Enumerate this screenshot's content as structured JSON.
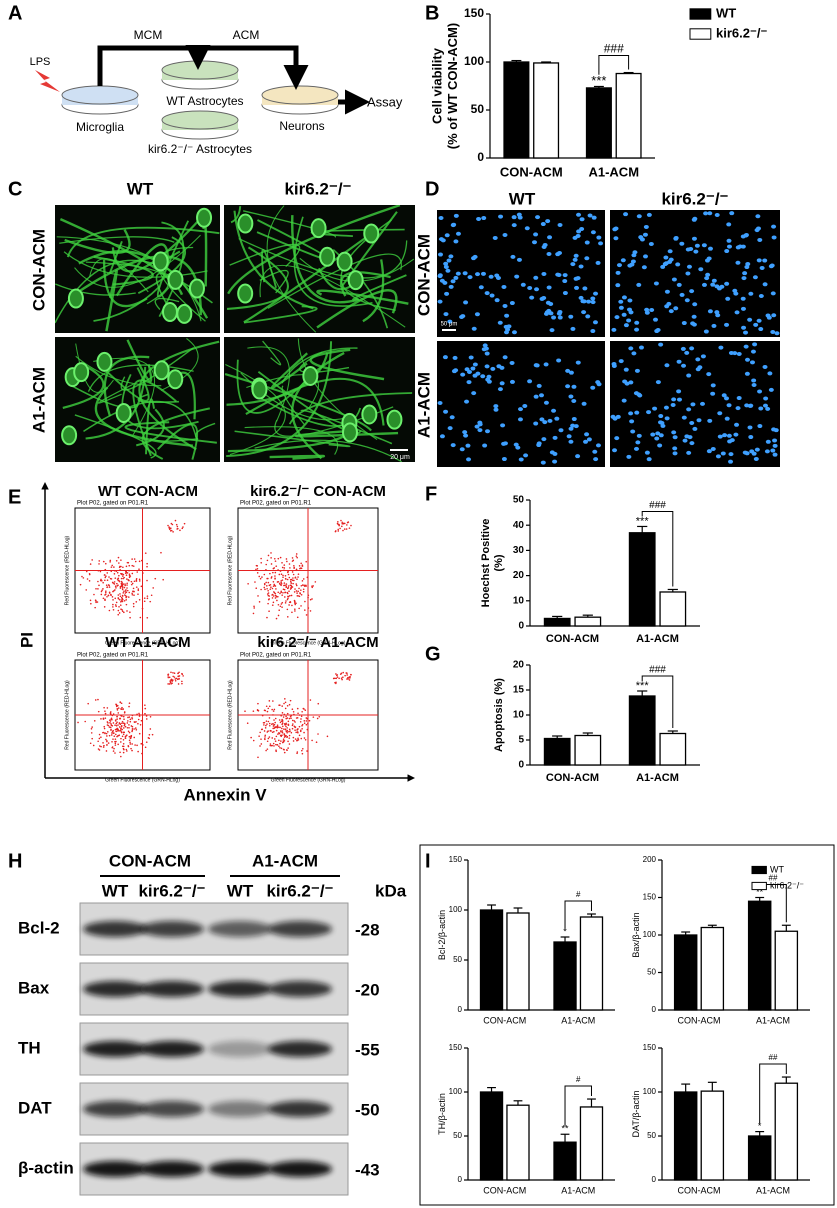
{
  "panels": {
    "letters": [
      "A",
      "B",
      "C",
      "D",
      "E",
      "F",
      "G",
      "H",
      "I"
    ],
    "a": {
      "lps": "LPS",
      "mcm": "MCM",
      "acm": "ACM",
      "microglia": "Microglia",
      "wt_astro": "WT Astrocytes",
      "kir_astro": "kir6.2⁻/⁻ Astrocytes",
      "neurons": "Neurons",
      "assay": "Assay"
    },
    "c": {
      "cols": [
        "WT",
        "kir6.2⁻/⁻"
      ],
      "rows": [
        "CON-ACM",
        "A1-ACM"
      ],
      "scale": "20 μm"
    },
    "d": {
      "cols": [
        "WT",
        "kir6.2⁻/⁻"
      ],
      "rows": [
        "CON-ACM",
        "A1-ACM"
      ],
      "scale": "50 μm"
    },
    "e": {
      "titles": [
        "WT CON-ACM",
        "kir6.2⁻/⁻ CON-ACM",
        "WT A1-ACM",
        "kir6.2⁻/⁻ A1-ACM"
      ],
      "plot_caption": "Plot P02, gated on P01.R1",
      "y_inner": "Red Fluorescence (RED-HLog)",
      "x_inner": "Green Fluorescence (GRN-HLog)",
      "y_axis": "PI",
      "x_axis": "Annexin V"
    },
    "h": {
      "groups": [
        "CON-ACM",
        "A1-ACM"
      ],
      "lanes": [
        "WT",
        "kir6.2⁻/⁻",
        "WT",
        "kir6.2⁻/⁻"
      ],
      "unit": "kDa",
      "proteins": [
        "Bcl-2",
        "Bax",
        "TH",
        "DAT",
        "β-actin"
      ],
      "sizes": [
        "-28",
        "-20",
        "-55",
        "-50",
        "-43"
      ]
    }
  },
  "chart_data": [
    {
      "type": "bar",
      "ylabel": [
        "Cell viability",
        "(% of WT CON-ACM)"
      ],
      "categories": [
        "CON-ACM",
        "A1-ACM"
      ],
      "series": [
        {
          "name": "WT",
          "color": "#000000",
          "values": [
            100,
            73
          ],
          "errors": [
            1.5,
            1.5
          ]
        },
        {
          "name": "kir6.2⁻/⁻",
          "color": "#ffffff",
          "values": [
            99,
            88
          ],
          "errors": [
            1,
            1
          ]
        }
      ],
      "ylim": [
        0,
        150
      ],
      "yticks": [
        0,
        50,
        100,
        150
      ],
      "legend": true,
      "star_label": "***",
      "hash_label": "###"
    },
    {
      "type": "bar",
      "ylabel": [
        "Hoechst Positive",
        "(%)"
      ],
      "categories": [
        "CON-ACM",
        "A1-ACM"
      ],
      "series": [
        {
          "name": "WT",
          "color": "#000000",
          "values": [
            3,
            37
          ],
          "errors": [
            0.8,
            2.5
          ]
        },
        {
          "name": "kir6.2⁻/⁻",
          "color": "#ffffff",
          "values": [
            3.5,
            13.5
          ],
          "errors": [
            0.8,
            1
          ]
        }
      ],
      "ylim": [
        0,
        50
      ],
      "yticks": [
        0,
        10,
        20,
        30,
        40,
        50
      ],
      "legend": false,
      "star_label": "***",
      "hash_label": "###"
    },
    {
      "type": "bar",
      "ylabel": [
        "Apoptosis (%)"
      ],
      "categories": [
        "CON-ACM",
        "A1-ACM"
      ],
      "series": [
        {
          "name": "WT",
          "color": "#000000",
          "values": [
            5.3,
            13.8
          ],
          "errors": [
            0.5,
            1
          ]
        },
        {
          "name": "kir6.2⁻/⁻",
          "color": "#ffffff",
          "values": [
            5.9,
            6.3
          ],
          "errors": [
            0.5,
            0.5
          ]
        }
      ],
      "ylim": [
        0,
        20
      ],
      "yticks": [
        0,
        5,
        10,
        15,
        20
      ],
      "legend": false,
      "star_label": "***",
      "hash_label": "###"
    },
    {
      "type": "bar",
      "ylabel": [
        "Bcl-2/β-actin"
      ],
      "categories": [
        "CON-ACM",
        "A1-ACM"
      ],
      "series": [
        {
          "name": "WT",
          "color": "#000000",
          "values": [
            100,
            68
          ],
          "errors": [
            5,
            5
          ]
        },
        {
          "name": "kir6.2⁻/⁻",
          "color": "#ffffff",
          "values": [
            97,
            93
          ],
          "errors": [
            5,
            3
          ]
        }
      ],
      "ylim": [
        0,
        150
      ],
      "yticks": [
        0,
        50,
        100,
        150
      ],
      "legend": false,
      "star_label": "*",
      "hash_label": "#"
    },
    {
      "type": "bar",
      "ylabel": [
        "Bax/β-actin"
      ],
      "categories": [
        "CON-ACM",
        "A1-ACM"
      ],
      "series": [
        {
          "name": "WT",
          "color": "#000000",
          "values": [
            100,
            145
          ],
          "errors": [
            4,
            5
          ]
        },
        {
          "name": "kir6.2⁻/⁻",
          "color": "#ffffff",
          "values": [
            110,
            105
          ],
          "errors": [
            3,
            8
          ]
        }
      ],
      "ylim": [
        0,
        200
      ],
      "yticks": [
        0,
        50,
        100,
        150,
        200
      ],
      "legend": true,
      "star_label": "**",
      "hash_label": "##"
    },
    {
      "type": "bar",
      "ylabel": [
        "TH/β-actin"
      ],
      "categories": [
        "CON-ACM",
        "A1-ACM"
      ],
      "series": [
        {
          "name": "WT",
          "color": "#000000",
          "values": [
            100,
            43
          ],
          "errors": [
            5,
            9
          ]
        },
        {
          "name": "kir6.2⁻/⁻",
          "color": "#ffffff",
          "values": [
            85,
            83
          ],
          "errors": [
            5,
            9
          ]
        }
      ],
      "ylim": [
        0,
        150
      ],
      "yticks": [
        0,
        50,
        100,
        150
      ],
      "legend": false,
      "star_label": "**",
      "hash_label": "#"
    },
    {
      "type": "bar",
      "ylabel": [
        "DAT/β-actin"
      ],
      "categories": [
        "CON-ACM",
        "A1-ACM"
      ],
      "series": [
        {
          "name": "WT",
          "color": "#000000",
          "values": [
            100,
            50
          ],
          "errors": [
            9,
            5
          ]
        },
        {
          "name": "kir6.2⁻/⁻",
          "color": "#ffffff",
          "values": [
            101,
            110
          ],
          "errors": [
            10,
            7
          ]
        }
      ],
      "ylim": [
        0,
        150
      ],
      "yticks": [
        0,
        50,
        100,
        150
      ],
      "legend": false,
      "star_label": "*",
      "hash_label": "##"
    }
  ]
}
